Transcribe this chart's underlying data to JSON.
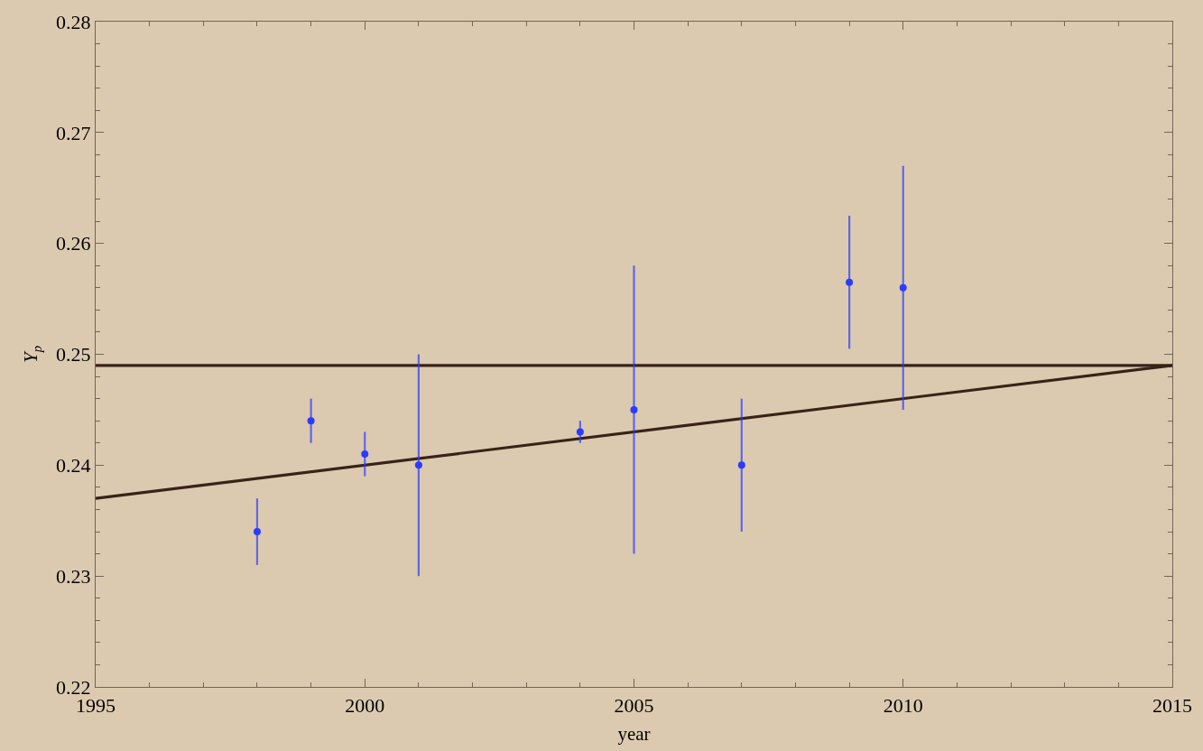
{
  "chart_data": {
    "type": "scatter",
    "xlabel": "year",
    "ylabel": "Y$_{p}$",
    "xlim": [
      1995,
      2015
    ],
    "ylim": [
      0.22,
      0.28
    ],
    "xticks": [
      1995,
      {
        "value": 1996,
        "label": null
      },
      {
        "value": 1997,
        "label": null
      },
      {
        "value": 1998,
        "label": null
      },
      {
        "value": 1999,
        "label": null
      },
      2000,
      {
        "value": 2001,
        "label": null
      },
      {
        "value": 2002,
        "label": null
      },
      {
        "value": 2003,
        "label": null
      },
      {
        "value": 2004,
        "label": null
      },
      2005,
      {
        "value": 2006,
        "label": null
      },
      {
        "value": 2007,
        "label": null
      },
      {
        "value": 2008,
        "label": null
      },
      {
        "value": 2009,
        "label": null
      },
      2010,
      {
        "value": 2011,
        "label": null
      },
      {
        "value": 2012,
        "label": null
      },
      {
        "value": 2013,
        "label": null
      },
      {
        "value": 2014,
        "label": null
      },
      2015
    ],
    "yticks": [
      0.22,
      {
        "value": 0.222,
        "label": null
      },
      {
        "value": 0.224,
        "label": null
      },
      {
        "value": 0.226,
        "label": null
      },
      {
        "value": 0.228,
        "label": null
      },
      0.23,
      {
        "value": 0.232,
        "label": null
      },
      {
        "value": 0.234,
        "label": null
      },
      {
        "value": 0.236,
        "label": null
      },
      {
        "value": 0.238,
        "label": null
      },
      0.24,
      {
        "value": 0.242,
        "label": null
      },
      {
        "value": 0.244,
        "label": null
      },
      {
        "value": 0.246,
        "label": null
      },
      {
        "value": 0.248,
        "label": null
      },
      0.25,
      {
        "value": 0.252,
        "label": null
      },
      {
        "value": 0.254,
        "label": null
      },
      {
        "value": 0.256,
        "label": null
      },
      {
        "value": 0.258,
        "label": null
      },
      0.26,
      {
        "value": 0.262,
        "label": null
      },
      {
        "value": 0.264,
        "label": null
      },
      {
        "value": 0.266,
        "label": null
      },
      {
        "value": 0.268,
        "label": null
      },
      0.27,
      {
        "value": 0.272,
        "label": null
      },
      {
        "value": 0.274,
        "label": null
      },
      {
        "value": 0.276,
        "label": null
      },
      {
        "value": 0.278,
        "label": null
      },
      0.28
    ],
    "series": [
      {
        "color": "#2a3cff",
        "marker": "circle",
        "x": [
          1998,
          1999,
          2000,
          2001,
          2004,
          2005,
          2007,
          2009,
          2010
        ],
        "values": [
          0.234,
          0.244,
          0.241,
          0.24,
          0.243,
          0.245,
          0.24,
          0.2565,
          0.256
        ],
        "errors": [
          0.003,
          0.002,
          0.002,
          0.01,
          0.001,
          0.013,
          0.006,
          0.006,
          0.011
        ]
      },
      {
        "type": "line",
        "color": "#3a2219",
        "line_style": "solid",
        "x": [
          1995,
          2015
        ],
        "values": [
          0.237,
          0.249
        ]
      }
    ],
    "ref_lines": [
      {
        "axis": "y",
        "value": 0.249,
        "color": "#3a2219",
        "line_style": "solid"
      }
    ]
  }
}
